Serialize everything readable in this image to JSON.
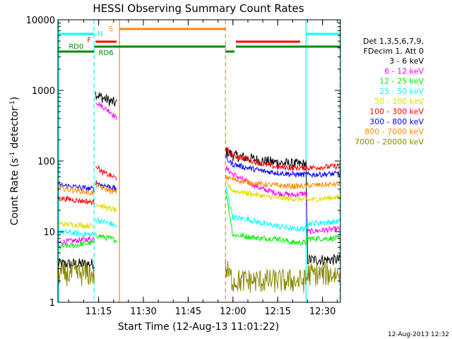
{
  "chart_data": {
    "type": "line",
    "title": "HESSI Observing Summary Count Rates",
    "xlabel": "Start Time (12-Aug-13 11:01:22)",
    "ylabel_main": "Count Rate (s",
    "ylabel_sup1": "-1",
    "ylabel_mid": " detector",
    "ylabel_sup2": "-1",
    "ylabel_end": ")",
    "yscale": "log",
    "ylim": [
      1,
      10000
    ],
    "xlim_minutes": [
      661.37,
      756.0
    ],
    "x_ticks": [
      {
        "label": "11:15",
        "t": 675
      },
      {
        "label": "11:30",
        "t": 690
      },
      {
        "label": "11:45",
        "t": 705
      },
      {
        "label": "12:00",
        "t": 720
      },
      {
        "label": "12:15",
        "t": 735
      },
      {
        "label": "12:30",
        "t": 750
      }
    ],
    "y_ticks": [
      {
        "label": "1",
        "v": 1
      },
      {
        "label": "10",
        "v": 10
      },
      {
        "label": "100",
        "v": 100
      },
      {
        "label": "1000",
        "v": 1000
      },
      {
        "label": "10000",
        "v": 10000
      }
    ],
    "footer_date": "12-Aug-2013 12:32",
    "legend": {
      "header_line1": "Det 1,3,5,6,7,9,",
      "header_line2": "FDecim 1, Att 0",
      "entries": [
        {
          "label": "3 - 6 keV",
          "color": "#000000"
        },
        {
          "label": "6 - 12 keV",
          "color": "#ff00ff"
        },
        {
          "label": "12 - 25 keV",
          "color": "#00ee00"
        },
        {
          "label": "25 - 50 keV",
          "color": "#00ffff"
        },
        {
          "label": "50 - 100 keV",
          "color": "#dddd00"
        },
        {
          "label": "100 - 300 keV",
          "color": "#ff0000"
        },
        {
          "label": "300 - 800 keV",
          "color": "#0000ff"
        },
        {
          "label": "800 - 7000 keV",
          "color": "#ff8800"
        },
        {
          "label": "7000 - 20000 keV",
          "color": "#888800"
        }
      ]
    },
    "flags": [
      {
        "label": "N",
        "color": "#00ffff",
        "segments": [
          [
            661.37,
            673.5
          ],
          [
            744.5,
            756.0
          ]
        ]
      },
      {
        "label": "F",
        "color": "#ff0000",
        "segments": [
          [
            674.0,
            681.0
          ],
          [
            721.0,
            742.5
          ]
        ]
      },
      {
        "label": "S",
        "color": "#ff8800",
        "segments": [
          [
            682.0,
            717.5
          ]
        ]
      },
      {
        "label": "RD0",
        "color": "#008800",
        "segments": [
          [
            673.5,
            717.5
          ],
          [
            721.0,
            756.0
          ]
        ]
      },
      {
        "label": "RD6",
        "color": "#008800",
        "segments": [
          [
            661.37,
            673.5
          ],
          [
            717.5,
            720.5
          ]
        ]
      }
    ],
    "vlines": [
      {
        "t": 661.6,
        "color": "#00ffff",
        "style": "solid"
      },
      {
        "t": 673.5,
        "color": "#00ffff",
        "style": "dashed"
      },
      {
        "t": 682.0,
        "color": "#ff8800",
        "style": "solid"
      },
      {
        "t": 717.5,
        "color": "#ff8800",
        "style": "dashed"
      },
      {
        "t": 744.5,
        "color": "#00ffff",
        "style": "solid"
      },
      {
        "t": 755.8,
        "color": "#00ffff",
        "style": "dashed"
      }
    ],
    "gap_minutes": [
      681.0,
      717.5
    ],
    "series": [
      {
        "name": "3 - 6 keV",
        "color": "#000000",
        "pre": [
          [
            661.4,
            3.5
          ],
          [
            673.5,
            3.5
          ]
        ],
        "post": [
          [
            674.0,
            900
          ],
          [
            676.0,
            800
          ],
          [
            679.0,
            700
          ],
          [
            681.0,
            650
          ]
        ],
        "post2": [
          [
            717.5,
            140
          ],
          [
            720.0,
            120
          ],
          [
            725.0,
            110
          ],
          [
            730.0,
            100
          ],
          [
            735.0,
            95
          ],
          [
            740.0,
            90
          ],
          [
            744.5,
            90
          ],
          [
            745.0,
            4
          ],
          [
            755.8,
            4
          ]
        ]
      },
      {
        "name": "6 - 12 keV",
        "color": "#ff00ff",
        "pre": [
          [
            661.4,
            7
          ],
          [
            673.5,
            8
          ]
        ],
        "post": [
          [
            674.0,
            700
          ],
          [
            676.0,
            600
          ],
          [
            679.0,
            500
          ],
          [
            681.0,
            400
          ]
        ],
        "post2": [
          [
            717.5,
            80
          ],
          [
            720.0,
            65
          ],
          [
            725.0,
            50
          ],
          [
            730.0,
            40
          ],
          [
            735.0,
            35
          ],
          [
            740.0,
            33
          ],
          [
            744.5,
            35
          ],
          [
            745.0,
            10
          ],
          [
            755.8,
            11
          ]
        ]
      },
      {
        "name": "12 - 25 keV",
        "color": "#00ee00",
        "pre": [
          [
            661.4,
            6
          ],
          [
            673.5,
            7
          ]
        ],
        "post": [
          [
            674.0,
            9
          ],
          [
            676.0,
            8.5
          ],
          [
            679.0,
            8
          ],
          [
            681.0,
            7.5
          ]
        ],
        "post2": [
          [
            717.5,
            40
          ],
          [
            720.0,
            9
          ],
          [
            725.0,
            8.5
          ],
          [
            730.0,
            8
          ],
          [
            735.0,
            8
          ],
          [
            740.0,
            7
          ],
          [
            744.5,
            7
          ],
          [
            745.0,
            8
          ],
          [
            755.8,
            8
          ]
        ]
      },
      {
        "name": "25 - 50 keV",
        "color": "#00ffff",
        "pre": [
          [
            661.4,
            10
          ],
          [
            673.5,
            9
          ]
        ],
        "post": [
          [
            674.0,
            15
          ],
          [
            676.0,
            14
          ],
          [
            679.0,
            13
          ],
          [
            681.0,
            12
          ]
        ],
        "post2": [
          [
            717.5,
            45
          ],
          [
            720.0,
            16
          ],
          [
            725.0,
            15
          ],
          [
            730.0,
            13
          ],
          [
            735.0,
            12
          ],
          [
            740.0,
            11
          ],
          [
            744.5,
            11
          ],
          [
            745.0,
            13
          ],
          [
            755.8,
            14
          ]
        ]
      },
      {
        "name": "50 - 100 keV",
        "color": "#dddd00",
        "pre": [
          [
            661.4,
            13
          ],
          [
            673.5,
            12
          ]
        ],
        "post": [
          [
            674.0,
            25
          ],
          [
            676.0,
            23
          ],
          [
            679.0,
            21
          ],
          [
            681.0,
            20
          ]
        ],
        "post2": [
          [
            717.5,
            50
          ],
          [
            720.0,
            38
          ],
          [
            725.0,
            35
          ],
          [
            730.0,
            32
          ],
          [
            735.0,
            30
          ],
          [
            740.0,
            29
          ],
          [
            744.5,
            29
          ],
          [
            745.0,
            28
          ],
          [
            755.8,
            31
          ]
        ]
      },
      {
        "name": "100 - 300 keV",
        "color": "#ff0000",
        "pre": [
          [
            661.4,
            30
          ],
          [
            673.5,
            26
          ]
        ],
        "post": [
          [
            674.0,
            90
          ],
          [
            676.0,
            70
          ],
          [
            679.0,
            62
          ],
          [
            681.0,
            57
          ]
        ],
        "post2": [
          [
            717.5,
            150
          ],
          [
            720.0,
            120
          ],
          [
            725.0,
            105
          ],
          [
            730.0,
            90
          ],
          [
            735.0,
            82
          ],
          [
            740.0,
            80
          ],
          [
            744.5,
            80
          ],
          [
            745.0,
            80
          ],
          [
            755.8,
            85
          ]
        ]
      },
      {
        "name": "300 - 800 keV",
        "color": "#0000ff",
        "pre": [
          [
            661.4,
            46
          ],
          [
            673.5,
            40
          ]
        ],
        "post": [
          [
            674.0,
            50
          ],
          [
            676.0,
            46
          ],
          [
            679.0,
            43
          ],
          [
            681.0,
            40
          ]
        ],
        "post2": [
          [
            717.5,
            110
          ],
          [
            720.0,
            90
          ],
          [
            725.0,
            80
          ],
          [
            730.0,
            72
          ],
          [
            735.0,
            68
          ],
          [
            740.0,
            65
          ],
          [
            744.5,
            64
          ],
          [
            745.0,
            64
          ],
          [
            755.8,
            66
          ]
        ]
      },
      {
        "name": "800 - 7000 keV",
        "color": "#ff8800",
        "pre": [
          [
            661.4,
            42
          ],
          [
            673.5,
            35
          ]
        ],
        "post": [
          [
            674.0,
            46
          ],
          [
            676.0,
            42
          ],
          [
            679.0,
            38
          ],
          [
            681.0,
            36
          ]
        ],
        "post2": [
          [
            717.5,
            60
          ],
          [
            720.0,
            55
          ],
          [
            725.0,
            50
          ],
          [
            730.0,
            47
          ],
          [
            735.0,
            45
          ],
          [
            740.0,
            44
          ],
          [
            744.5,
            44
          ],
          [
            745.0,
            45
          ],
          [
            755.8,
            47
          ]
        ]
      },
      {
        "name": "7000 - 20000 keV",
        "color": "#888800",
        "pre": [
          [
            661.4,
            2.5
          ],
          [
            673.5,
            2.5
          ]
        ],
        "post": [],
        "post2": [
          [
            717.5,
            3
          ],
          [
            720.0,
            2
          ],
          [
            725.0,
            2
          ],
          [
            730.0,
            2
          ],
          [
            735.0,
            2
          ],
          [
            740.0,
            2
          ],
          [
            744.5,
            2
          ],
          [
            745.0,
            2.5
          ],
          [
            755.8,
            2.5
          ]
        ]
      }
    ]
  }
}
